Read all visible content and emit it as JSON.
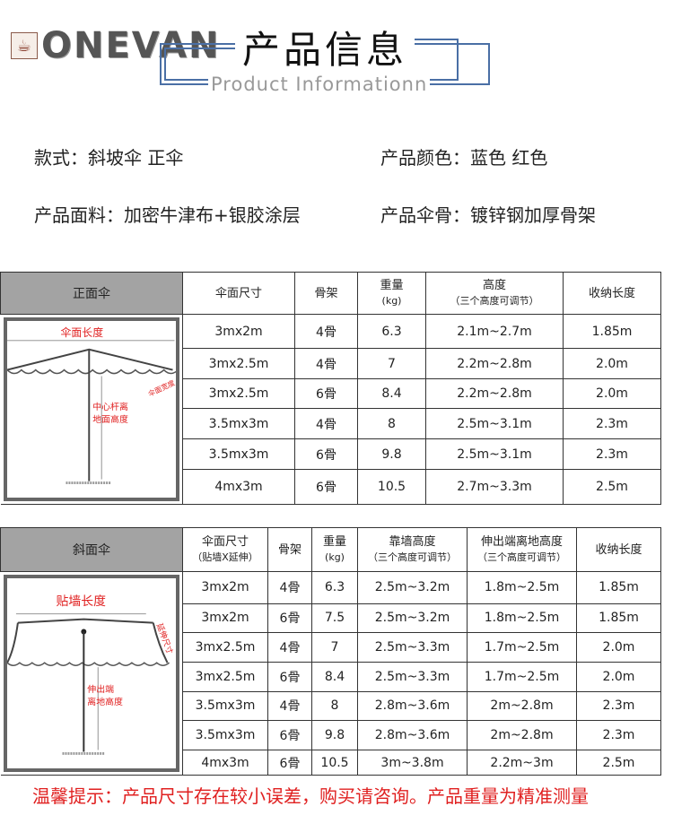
{
  "brand": {
    "logo_text": "ONEVAN"
  },
  "header": {
    "title": "产品信息",
    "subtitle": "Product Informationn",
    "accent_color": "#4a6fa5"
  },
  "info": {
    "style": "款式：斜坡伞  正伞",
    "color": "产品颜色：蓝色 红色",
    "fabric": "产品面料：加密牛津布+银胶涂层",
    "frame": "产品伞骨：镀锌钢加厚骨架"
  },
  "table1": {
    "name": "正面伞",
    "headers": [
      "伞面尺寸",
      "骨架",
      "重量",
      "(kg)",
      "高度",
      "（三个高度可调节）",
      "收纳长度"
    ],
    "diagram_labels": [
      "伞面长度",
      "伞面宽度",
      "中心杆离",
      "地面高度"
    ],
    "rows": [
      [
        "3mx2m",
        "4骨",
        "6.3",
        "2.1m~2.7m",
        "1.85m"
      ],
      [
        "3mx2.5m",
        "4骨",
        "7",
        "2.2m~2.8m",
        "2.0m"
      ],
      [
        "3mx2.5m",
        "6骨",
        "8.4",
        "2.2m~2.8m",
        "2.0m"
      ],
      [
        "3.5mx3m",
        "4骨",
        "8",
        "2.5m~3.1m",
        "2.3m"
      ],
      [
        "3.5mx3m",
        "6骨",
        "9.8",
        "2.5m~3.1m",
        "2.3m"
      ],
      [
        "4mx3m",
        "6骨",
        "10.5",
        "2.7m~3.3m",
        "2.5m"
      ]
    ]
  },
  "table2": {
    "name": "斜面伞",
    "headers": [
      "伞面尺寸",
      "（贴墙X延伸）",
      "骨架",
      "重量",
      "(kg)",
      "靠墙高度",
      "（三个高度可调节）",
      "伸出端离地高度",
      "（三个高度可调节）",
      "收纳长度"
    ],
    "diagram_labels": [
      "贴墙长度",
      "延伸尺寸",
      "伸出端",
      "离地高度"
    ],
    "rows": [
      [
        "3mx2m",
        "4骨",
        "6.3",
        "2.5m~3.2m",
        "1.8m~2.5m",
        "1.85m"
      ],
      [
        "3mx2m",
        "6骨",
        "7.5",
        "2.5m~3.2m",
        "1.8m~2.5m",
        "1.85m"
      ],
      [
        "3mx2.5m",
        "4骨",
        "7",
        "2.5m~3.3m",
        "1.7m~2.5m",
        "2.0m"
      ],
      [
        "3mx2.5m",
        "6骨",
        "8.4",
        "2.5m~3.3m",
        "1.7m~2.5m",
        "2.0m"
      ],
      [
        "3.5mx3m",
        "4骨",
        "8",
        "2.8m~3.6m",
        "2m~2.8m",
        "2.3m"
      ],
      [
        "3.5mx3m",
        "6骨",
        "9.8",
        "2.8m~3.6m",
        "2m~2.8m",
        "2.3m"
      ],
      [
        "4mx3m",
        "6骨",
        "10.5",
        "3m~3.8m",
        "2.2m~3m",
        "2.5m"
      ]
    ]
  },
  "note": "温馨提示：产品尺寸存在较小误差，购买请咨询。产品重量为精准测量",
  "note_color": "#e02020"
}
